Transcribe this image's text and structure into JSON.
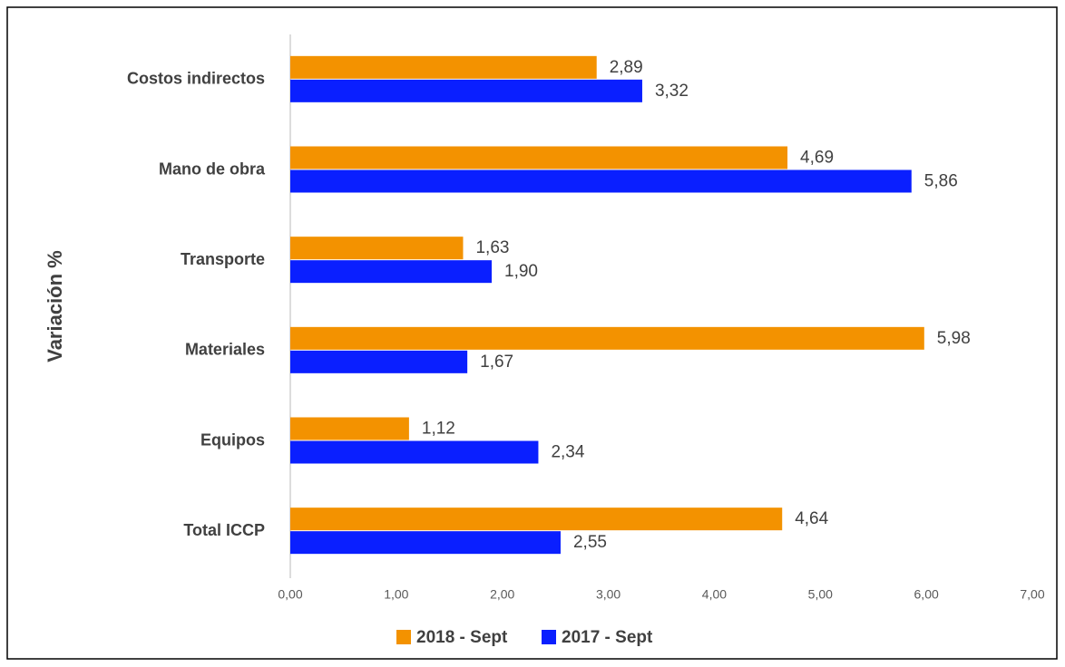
{
  "chart_data": {
    "type": "bar",
    "orientation": "horizontal",
    "y_axis_label": "Variación %",
    "categories": [
      "Costos indirectos",
      "Mano de obra",
      "Transporte",
      "Materiales",
      "Equipos",
      "Total ICCP"
    ],
    "series": [
      {
        "name": "2018 - Sept",
        "color": "#f39200",
        "values": [
          2.89,
          4.69,
          1.63,
          5.98,
          1.12,
          4.64
        ],
        "value_labels": [
          "2,89",
          "4,69",
          "1,63",
          "5,98",
          "1,12",
          "4,64"
        ]
      },
      {
        "name": "2017 - Sept",
        "color": "#0a1fff",
        "values": [
          3.32,
          5.86,
          1.9,
          1.67,
          2.34,
          2.55
        ],
        "value_labels": [
          "3,32",
          "5,86",
          "1,90",
          "1,67",
          "2,34",
          "2,55"
        ]
      }
    ],
    "xlim": [
      0,
      7
    ],
    "xticks": [
      {
        "value": 0,
        "label": "0,00"
      },
      {
        "value": 1,
        "label": "1,00"
      },
      {
        "value": 2,
        "label": "2,00"
      },
      {
        "value": 3,
        "label": "3,00"
      },
      {
        "value": 4,
        "label": "4,00"
      },
      {
        "value": 5,
        "label": "5,00"
      },
      {
        "value": 6,
        "label": "6,00"
      },
      {
        "value": 7,
        "label": "7,00"
      }
    ],
    "grid": false,
    "legend": "bottom"
  }
}
